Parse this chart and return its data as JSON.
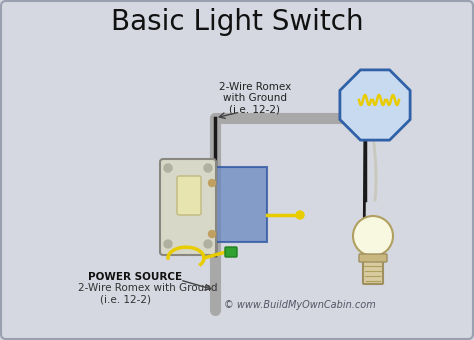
{
  "title": "Basic Light Switch",
  "title_fontsize": 20,
  "bg_color": "#d5d8e0",
  "border_color": "#9aa0b0",
  "copyright_text": "© www.BuildMyOwnCabin.com",
  "label_top_line1": "2-Wire Romex",
  "label_top_line2": "with Ground",
  "label_top_line3": "(i.e. 12-2)",
  "label_bottom_line1": "POWER SOURCE",
  "label_bottom_line2": "2-Wire Romex with Ground",
  "label_bottom_line3": "(i.e. 12-2)",
  "wire_gray": "#a8a8a8",
  "wire_black": "#1a1a1a",
  "wire_white": "#d8d8d0",
  "wire_yellow": "#e8cc00",
  "wire_green": "#30a030",
  "switch_box_color": "#6888c0",
  "switch_body_color": "#e0e0d0",
  "octagon_fill": "#c8daf0",
  "octagon_edge": "#3060a8",
  "light_bulb_color": "#f8f8e0",
  "light_base_color": "#d8cca0"
}
